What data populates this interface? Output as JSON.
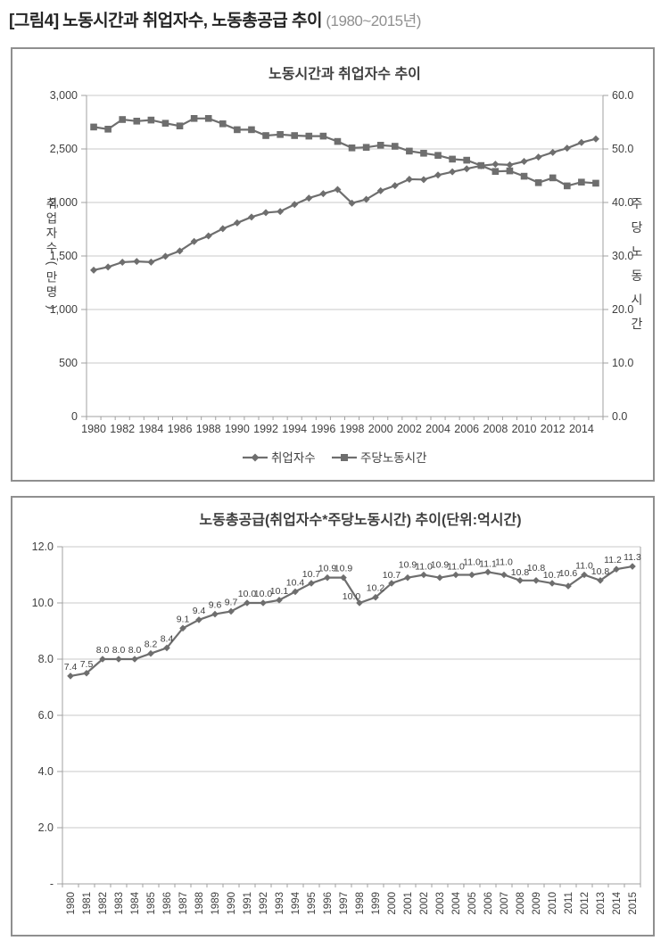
{
  "header": {
    "figure_label": "[그림4]",
    "figure_title": "노동시간과 취업자수, 노동총공급 추이",
    "figure_period": "(1980~2015년)"
  },
  "colors": {
    "series_gray": "#6e6e6e",
    "grid": "#c9c9c9",
    "axis": "#a0a0a0",
    "text": "#3f3f3f",
    "box_border": "#8f8f8f"
  },
  "chart_data": [
    {
      "type": "line",
      "title": "노동시간과 취업자수 추이",
      "x": [
        1980,
        1981,
        1982,
        1983,
        1984,
        1985,
        1986,
        1987,
        1988,
        1989,
        1990,
        1991,
        1992,
        1993,
        1994,
        1995,
        1996,
        1997,
        1998,
        1999,
        2000,
        2001,
        2002,
        2003,
        2004,
        2005,
        2006,
        2007,
        2008,
        2009,
        2010,
        2011,
        2012,
        2013,
        2014,
        2015
      ],
      "x_tick_labels": [
        "1980",
        "1982",
        "1984",
        "1986",
        "1988",
        "1990",
        "1992",
        "1994",
        "1996",
        "1998",
        "2000",
        "2002",
        "2004",
        "2006",
        "2008",
        "2010",
        "2012",
        "2014"
      ],
      "left_axis": {
        "label": "취업자수(만명)",
        "ticks": [
          "3,000",
          "2,500",
          "2,000",
          "1,500",
          "1,000",
          "500",
          "0"
        ],
        "min": 0,
        "max": 3000
      },
      "right_axis": {
        "label": "주당노동시간",
        "ticks": [
          "60.0",
          "50.0",
          "40.0",
          "30.0",
          "20.0",
          "10.0",
          "0.0"
        ],
        "min": 0,
        "max": 60
      },
      "grid": true,
      "legend_position": "bottom",
      "series": [
        {
          "name": "취업자수",
          "axis": "left",
          "marker": "diamond",
          "values": [
            1368,
            1397,
            1442,
            1449,
            1443,
            1497,
            1547,
            1635,
            1687,
            1755,
            1809,
            1864,
            1905,
            1916,
            1981,
            2041,
            2082,
            2121,
            1994,
            2029,
            2109,
            2157,
            2217,
            2214,
            2256,
            2286,
            2315,
            2343,
            2357,
            2351,
            2383,
            2424,
            2468,
            2507,
            2560,
            2594
          ]
        },
        {
          "name": "주당노동시간",
          "axis": "right",
          "marker": "square",
          "values": [
            54.1,
            53.7,
            55.5,
            55.2,
            55.4,
            54.8,
            54.3,
            55.7,
            55.7,
            54.7,
            53.6,
            53.6,
            52.5,
            52.7,
            52.5,
            52.4,
            52.4,
            51.4,
            50.2,
            50.3,
            50.7,
            50.5,
            49.6,
            49.2,
            48.8,
            48.1,
            47.9,
            46.9,
            45.8,
            45.9,
            44.9,
            43.7,
            44.6,
            43.1,
            43.8,
            43.6
          ]
        }
      ]
    },
    {
      "type": "line",
      "title": "노동총공급(취업자수*주당노동시간) 추이(단위:억시간)",
      "x_tick_labels": [
        "1980",
        "1981",
        "1982",
        "1983",
        "1984",
        "1985",
        "1986",
        "1987",
        "1988",
        "1989",
        "1990",
        "1991",
        "1992",
        "1993",
        "1994",
        "1995",
        "1996",
        "1997",
        "1998",
        "1999",
        "2000",
        "2001",
        "2002",
        "2003",
        "2004",
        "2005",
        "2006",
        "2007",
        "2008",
        "2009",
        "2010",
        "2011",
        "2012",
        "2013",
        "2014",
        "2015"
      ],
      "y_axis": {
        "ticks": [
          "12.0",
          "10.0",
          "8.0",
          "6.0",
          "4.0",
          "2.0",
          "-"
        ],
        "min": 0,
        "max": 12
      },
      "grid": true,
      "series": [
        {
          "name": "노동총공급",
          "marker": "diamond",
          "values": [
            7.4,
            7.5,
            8.0,
            8.0,
            8.0,
            8.2,
            8.4,
            9.1,
            9.4,
            9.6,
            9.7,
            10.0,
            10.0,
            10.1,
            10.4,
            10.7,
            10.9,
            10.9,
            10.0,
            10.2,
            10.7,
            10.9,
            11.0,
            10.9,
            11.0,
            11.0,
            11.1,
            11.0,
            10.8,
            10.8,
            10.7,
            10.6,
            11.0,
            10.8,
            11.2,
            11.3
          ],
          "data_labels": [
            "7.4",
            "7.5",
            "8.0",
            "8.0",
            "8.0",
            "8.2",
            "8.4",
            "9.1",
            "9.4",
            "9.6",
            "9.7",
            "10.0",
            "10.0",
            "10.1",
            "10.4",
            "10.7",
            "10.9",
            "10.9",
            "10.0",
            "10.2",
            "10.7",
            "10.9",
            "11.0",
            "10.9",
            "11.0",
            "11.0",
            "11.1",
            "11.0",
            "10.8",
            "10.8",
            "10.7",
            "10.6",
            "11.0",
            "10.8",
            "11.2",
            "11.3"
          ]
        }
      ]
    }
  ]
}
